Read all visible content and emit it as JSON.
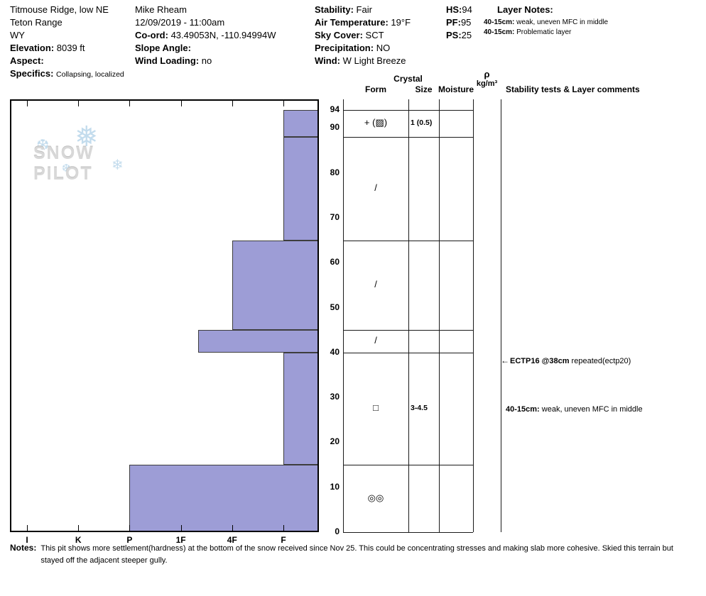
{
  "header": {
    "location": {
      "name": "Titmouse Ridge, low NE",
      "range": "Teton Range",
      "state": "WY",
      "elevation_label": "Elevation:",
      "elevation": "8039 ft",
      "aspect_label": "Aspect:",
      "specifics_label": "Specifics:",
      "specifics": "Collapsing, localized"
    },
    "observer": {
      "name": "Mike Rheam",
      "datetime": "12/09/2019 - 11:00am",
      "coord_label": "Co-ord:",
      "coord": "43.49053N, -110.94994W",
      "slope_angle_label": "Slope Angle:",
      "wind_loading_label": "Wind Loading:",
      "wind_loading": "no"
    },
    "conditions": {
      "stability_label": "Stability:",
      "stability": "Fair",
      "air_temp_label": "Air Temperature:",
      "air_temp": "19°F",
      "sky_label": "Sky Cover:",
      "sky": "SCT",
      "precip_label": "Precipitation:",
      "precip": "NO",
      "wind_label": "Wind:",
      "wind": "W Light Breeze"
    },
    "measurements": {
      "hs_label": "HS:",
      "hs": "94",
      "pf_label": "PF:",
      "pf": "95",
      "ps_label": "PS:",
      "ps": "25"
    },
    "layer_notes": {
      "title": "Layer Notes:",
      "items": [
        {
          "label": "40-15cm:",
          "text": "weak, uneven MFC in middle"
        },
        {
          "label": "40-15cm:",
          "text": "Problematic layer"
        }
      ]
    }
  },
  "chart": {
    "watermark": "SNOW PILOT",
    "hardness_ticks": [
      "I",
      "K",
      "P",
      "1F",
      "4F",
      "F"
    ],
    "columns": {
      "crystal": "Crystal",
      "form": "Form",
      "size": "Size",
      "moisture": "Moisture",
      "rho": "ρ",
      "rho_units": "kg/m³",
      "stability": "Stability tests & Layer comments"
    }
  },
  "chart_data": {
    "type": "bar",
    "subtype": "snow-pit-hardness-profile",
    "total_depth_cm": 94,
    "depth_axis_cm": [
      94,
      90,
      80,
      70,
      60,
      50,
      40,
      30,
      20,
      10,
      0
    ],
    "hardness_axis": [
      "I",
      "K",
      "P",
      "1F",
      "4F",
      "F"
    ],
    "colors": {
      "bar_fill": "#9d9dd6",
      "bar_border": "#3d3d3d",
      "flake_blue": "#b9d6ea",
      "watermark_gray": "#d8d8d8"
    },
    "layers": [
      {
        "top_cm": 94,
        "bottom_cm": 88,
        "hardness": "F",
        "form": "+ (▨)",
        "size": "1 (0.5)",
        "moisture": ""
      },
      {
        "top_cm": 88,
        "bottom_cm": 65,
        "hardness": "F",
        "form": "/",
        "size": "",
        "moisture": ""
      },
      {
        "top_cm": 65,
        "bottom_cm": 45,
        "hardness": "4F",
        "form": "/",
        "size": "",
        "moisture": ""
      },
      {
        "top_cm": 45,
        "bottom_cm": 40,
        "hardness": "1F-",
        "form": "/",
        "size": "",
        "moisture": ""
      },
      {
        "top_cm": 40,
        "bottom_cm": 15,
        "hardness": "F",
        "form": "□",
        "size": "3-4.5",
        "moisture": ""
      },
      {
        "top_cm": 15,
        "bottom_cm": 0,
        "hardness": "P",
        "form": "◎◎",
        "size": "",
        "moisture": ""
      }
    ],
    "annotations": [
      {
        "depth_cm": 38,
        "bold": "ECTP16 @38cm",
        "text": " repeated(ectp20)",
        "arrow": true
      },
      {
        "depth_cm": 27,
        "bold": "40-15cm:",
        "text": " weak, uneven MFC in middle",
        "arrow": false
      }
    ]
  },
  "notes": {
    "label": "Notes:",
    "text": "This pit shows more settlement(hardness) at the bottom of the snow received since Nov 25. This could be concentrating stresses and making slab more cohesive. Skied this terrain but stayed off the adjacent steeper gully."
  }
}
